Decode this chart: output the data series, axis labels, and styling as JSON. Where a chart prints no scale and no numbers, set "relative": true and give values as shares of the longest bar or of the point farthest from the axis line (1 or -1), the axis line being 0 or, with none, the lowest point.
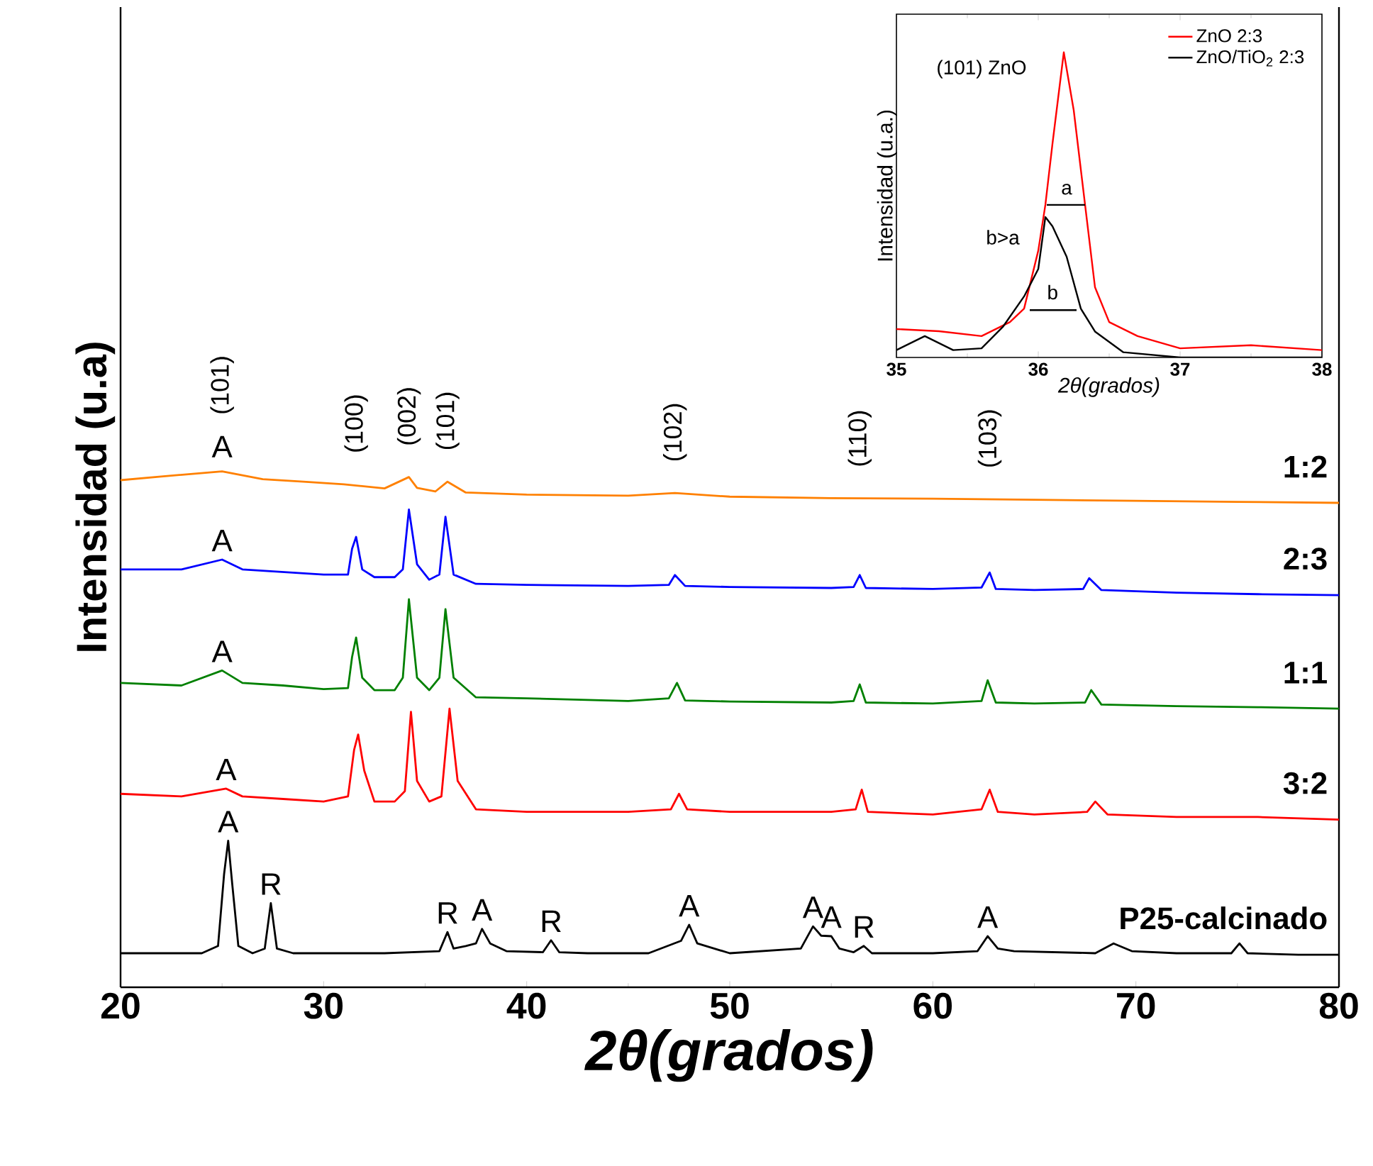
{
  "chart_data": [
    {
      "type": "line",
      "xlabel": "2θ(grados)",
      "ylabel": "Intensidad (u.a)",
      "relative": true,
      "legend": false,
      "xlim": [
        20,
        80
      ],
      "xticks": [
        20,
        30,
        40,
        50,
        60,
        70,
        80
      ],
      "series": [
        {
          "name": "P25-calcinado",
          "color": "#000000",
          "x": [
            20,
            22,
            24,
            24.8,
            25.1,
            25.3,
            25.5,
            25.8,
            26.5,
            27.1,
            27.4,
            27.7,
            28.5,
            30,
            33,
            35.7,
            36.1,
            36.4,
            37,
            37.5,
            37.8,
            38.2,
            39,
            40.8,
            41.2,
            41.6,
            43,
            46,
            47.6,
            48.0,
            48.4,
            50,
            53.5,
            54.1,
            54.5,
            55.0,
            55.4,
            56.1,
            56.6,
            57,
            60,
            62.2,
            62.7,
            63.2,
            64,
            68,
            68.9,
            69.8,
            72,
            74.7,
            75.1,
            75.5,
            78,
            80
          ],
          "values": [
            0.066,
            0.066,
            0.066,
            0.08,
            0.22,
            0.284,
            0.2,
            0.08,
            0.066,
            0.075,
            0.163,
            0.075,
            0.066,
            0.066,
            0.066,
            0.07,
            0.107,
            0.075,
            0.08,
            0.085,
            0.113,
            0.085,
            0.07,
            0.068,
            0.091,
            0.068,
            0.066,
            0.066,
            0.09,
            0.121,
            0.085,
            0.066,
            0.075,
            0.118,
            0.1,
            0.099,
            0.075,
            0.068,
            0.08,
            0.066,
            0.066,
            0.07,
            0.099,
            0.075,
            0.07,
            0.066,
            0.085,
            0.07,
            0.066,
            0.066,
            0.085,
            0.066,
            0.063,
            0.063
          ]
        },
        {
          "name": "3:2",
          "color": "#ff0000",
          "x": [
            20,
            23,
            25.2,
            26,
            28,
            30,
            31.2,
            31.5,
            31.7,
            32.0,
            32.5,
            33.5,
            34.0,
            34.3,
            34.6,
            35.2,
            35.8,
            36.2,
            36.6,
            37.5,
            40,
            45,
            47.1,
            47.5,
            47.9,
            50,
            55,
            56.2,
            56.5,
            56.8,
            60,
            62.4,
            62.8,
            63.2,
            65,
            67.6,
            68,
            68.6,
            72,
            76,
            80
          ],
          "values": [
            0.375,
            0.37,
            0.385,
            0.37,
            0.365,
            0.36,
            0.37,
            0.46,
            0.49,
            0.42,
            0.36,
            0.36,
            0.38,
            0.534,
            0.4,
            0.36,
            0.37,
            0.54,
            0.4,
            0.345,
            0.34,
            0.34,
            0.345,
            0.375,
            0.345,
            0.34,
            0.34,
            0.345,
            0.383,
            0.34,
            0.335,
            0.345,
            0.383,
            0.34,
            0.335,
            0.34,
            0.36,
            0.335,
            0.33,
            0.33,
            0.325
          ]
        },
        {
          "name": "1:1",
          "color": "#008000",
          "x": [
            20,
            23,
            25.0,
            26,
            28,
            30,
            31.2,
            31.4,
            31.6,
            31.9,
            32.5,
            33.5,
            33.9,
            34.2,
            34.6,
            35.2,
            35.7,
            36.0,
            36.4,
            37.5,
            40,
            45,
            47.0,
            47.4,
            47.8,
            50,
            55,
            56.1,
            56.4,
            56.7,
            60,
            62.4,
            62.7,
            63.1,
            65,
            67.5,
            67.8,
            68.3,
            72,
            76,
            80
          ],
          "values": [
            0.59,
            0.585,
            0.614,
            0.59,
            0.585,
            0.578,
            0.58,
            0.64,
            0.678,
            0.6,
            0.576,
            0.576,
            0.6,
            0.752,
            0.6,
            0.576,
            0.6,
            0.733,
            0.6,
            0.562,
            0.56,
            0.555,
            0.56,
            0.59,
            0.556,
            0.554,
            0.552,
            0.555,
            0.587,
            0.552,
            0.55,
            0.555,
            0.595,
            0.552,
            0.55,
            0.552,
            0.576,
            0.548,
            0.545,
            0.543,
            0.54
          ]
        },
        {
          "name": "2:3",
          "color": "#0000ff",
          "x": [
            20,
            23,
            25.0,
            26,
            28,
            30,
            31.2,
            31.4,
            31.6,
            31.9,
            32.5,
            33.5,
            33.9,
            34.2,
            34.6,
            35.2,
            35.7,
            36.0,
            36.4,
            37.5,
            40,
            45,
            47.0,
            47.3,
            47.8,
            50,
            55,
            56.1,
            56.4,
            56.7,
            60,
            62.4,
            62.8,
            63.1,
            65,
            67.4,
            67.7,
            68.3,
            72,
            76,
            80
          ],
          "values": [
            0.81,
            0.81,
            0.829,
            0.81,
            0.805,
            0.8,
            0.8,
            0.85,
            0.873,
            0.81,
            0.795,
            0.795,
            0.81,
            0.926,
            0.82,
            0.79,
            0.8,
            0.912,
            0.8,
            0.782,
            0.78,
            0.778,
            0.78,
            0.799,
            0.778,
            0.776,
            0.774,
            0.776,
            0.799,
            0.774,
            0.772,
            0.775,
            0.804,
            0.772,
            0.77,
            0.772,
            0.793,
            0.77,
            0.765,
            0.762,
            0.76
          ]
        },
        {
          "name": "1:2",
          "color": "#ff8000",
          "x": [
            20,
            22,
            25,
            27,
            29,
            31,
            33,
            34.2,
            34.6,
            35.5,
            36.1,
            37,
            40,
            45,
            47.3,
            50,
            55,
            60,
            65,
            70,
            75,
            80
          ],
          "values": [
            0.983,
            0.99,
            1.0,
            0.985,
            0.98,
            0.975,
            0.967,
            0.989,
            0.968,
            0.961,
            0.98,
            0.959,
            0.955,
            0.953,
            0.958,
            0.951,
            0.948,
            0.947,
            0.945,
            0.943,
            0.941,
            0.939
          ]
        }
      ],
      "annotations": [
        {
          "text": "A",
          "x": 25.3,
          "y": 0.284
        },
        {
          "text": "R",
          "x": 27.4,
          "y": 0.163
        },
        {
          "text": "R",
          "x": 36.1,
          "y": 0.107
        },
        {
          "text": "A",
          "x": 37.8,
          "y": 0.113
        },
        {
          "text": "R",
          "x": 41.2,
          "y": 0.091
        },
        {
          "text": "A",
          "x": 48.0,
          "y": 0.121
        },
        {
          "text": "A",
          "x": 54.1,
          "y": 0.118
        },
        {
          "text": "A",
          "x": 55.0,
          "y": 0.099
        },
        {
          "text": "R",
          "x": 56.6,
          "y": 0.08
        },
        {
          "text": "A",
          "x": 62.7,
          "y": 0.099
        },
        {
          "text": "A",
          "x": 25.2,
          "y": 0.385
        },
        {
          "text": "A",
          "x": 25.0,
          "y": 0.614
        },
        {
          "text": "A",
          "x": 25.0,
          "y": 0.829
        },
        {
          "text": "A",
          "x": 25,
          "y": 1.0
        },
        {
          "text": "(101)",
          "x": 25,
          "y": 1.0
        },
        {
          "text": "(100)",
          "x": 31.6,
          "y": 0.975
        },
        {
          "text": "(002)",
          "x": 34.2,
          "y": 0.989
        },
        {
          "text": "(101)",
          "x": 36.1,
          "y": 0.98
        },
        {
          "text": "(102)",
          "x": 47.3,
          "y": 0.958
        },
        {
          "text": "(110)",
          "x": 56.4,
          "y": 0.948
        },
        {
          "text": "(103)",
          "x": 62.8,
          "y": 0.946
        }
      ]
    },
    {
      "type": "line",
      "xlabel": "2θ(grados)",
      "ylabel": "Intensidad (u.a.)",
      "relative": true,
      "legend": "top right",
      "xlim": [
        35,
        38
      ],
      "xticks": [
        35,
        36,
        37,
        38
      ],
      "series": [
        {
          "name": "ZnO 2:3",
          "color": "#ff0000",
          "x": [
            35,
            35.3,
            35.6,
            35.8,
            35.9,
            36.0,
            36.05,
            36.1,
            36.18,
            36.25,
            36.33,
            36.4,
            36.5,
            36.7,
            37,
            37.5,
            38
          ],
          "values": [
            0.093,
            0.086,
            0.07,
            0.116,
            0.16,
            0.35,
            0.5,
            0.7,
            1.0,
            0.81,
            0.5,
            0.23,
            0.116,
            0.07,
            0.03,
            0.04,
            0.024
          ]
        },
        {
          "name": "ZnO/TiO$_{2}$ 2:3",
          "color": "#000000",
          "x": [
            35,
            35.2,
            35.4,
            35.6,
            35.75,
            35.9,
            36.0,
            36.05,
            36.1,
            36.2,
            36.3,
            36.4,
            36.6,
            37,
            38
          ],
          "values": [
            0.024,
            0.07,
            0.024,
            0.03,
            0.1,
            0.2,
            0.29,
            0.46,
            0.43,
            0.33,
            0.16,
            0.085,
            0.017,
            0,
            0
          ]
        },
        {
          "color": "#000000",
          "x": [
            36.06,
            36.33
          ],
          "values": [
            0.5,
            0.5
          ]
        },
        {
          "color": "#000000",
          "x": [
            35.94,
            36.27
          ],
          "values": [
            0.155,
            0.155
          ]
        }
      ],
      "annotations": [
        "(101) ZnO",
        "a",
        "b",
        "b>a"
      ]
    }
  ]
}
